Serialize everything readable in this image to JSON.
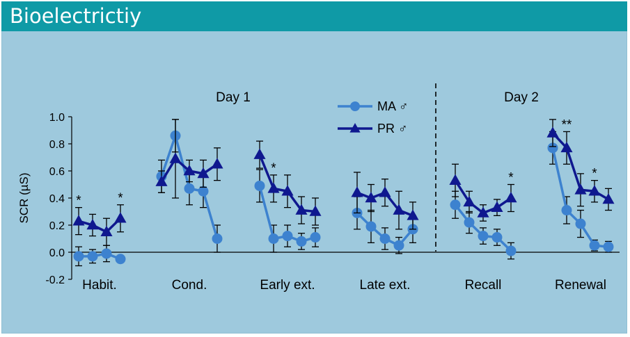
{
  "header": {
    "title": "Bioelectrictiy"
  },
  "colors": {
    "background": "#9ec9dd",
    "title_bar": "#0f9aa6",
    "ma": "#3d82cf",
    "pr": "#0f188f"
  },
  "chart_data": {
    "type": "line",
    "title": "",
    "xlabel": "",
    "ylabel": "SCR (µS)",
    "ylim": [
      -0.2,
      1.0
    ],
    "yticks": [
      "-0.2",
      "0.0",
      "0.2",
      "0.4",
      "0.6",
      "0.8",
      "1.0"
    ],
    "day_labels": [
      "Day 1",
      "Day 2"
    ],
    "phases": [
      {
        "label": "Habit.",
        "day": 1,
        "ma": {
          "values": [
            -0.03,
            -0.03,
            -0.01,
            -0.05
          ],
          "errors": [
            0.07,
            0.05,
            0.06,
            0.02
          ]
        },
        "pr": {
          "values": [
            0.23,
            0.2,
            0.15,
            0.25
          ],
          "errors": [
            0.1,
            0.08,
            0.1,
            0.1
          ]
        },
        "stars": [
          "*",
          "",
          "",
          "*"
        ]
      },
      {
        "label": "Cond.",
        "day": 1,
        "ma": {
          "values": [
            0.56,
            0.86,
            0.47,
            0.45,
            0.1
          ],
          "errors": [
            0.12,
            0.12,
            0.12,
            0.12,
            0.1
          ]
        },
        "pr": {
          "values": [
            0.52,
            0.69,
            0.6,
            0.58,
            0.65
          ],
          "errors": [
            0.08,
            0.29,
            0.08,
            0.1,
            0.12
          ]
        },
        "stars": [
          "",
          "",
          "",
          "",
          ""
        ]
      },
      {
        "label": "Early ext.",
        "day": 1,
        "ma": {
          "values": [
            0.49,
            0.1,
            0.12,
            0.08,
            0.11
          ],
          "errors": [
            0.12,
            0.1,
            0.08,
            0.06,
            0.07
          ]
        },
        "pr": {
          "values": [
            0.72,
            0.47,
            0.45,
            0.31,
            0.3
          ],
          "errors": [
            0.1,
            0.1,
            0.12,
            0.1,
            0.1
          ]
        },
        "stars": [
          "",
          "*",
          "",
          "",
          ""
        ]
      },
      {
        "label": "Late ext.",
        "day": 1,
        "ma": {
          "values": [
            0.29,
            0.19,
            0.1,
            0.05,
            0.17
          ],
          "errors": [
            0.12,
            0.12,
            0.08,
            0.06,
            0.1
          ]
        },
        "pr": {
          "values": [
            0.44,
            0.4,
            0.44,
            0.31,
            0.27
          ],
          "errors": [
            0.15,
            0.1,
            0.1,
            0.14,
            0.1
          ]
        },
        "stars": [
          "",
          "",
          "",
          "",
          ""
        ]
      },
      {
        "label": "Recall",
        "day": 2,
        "ma": {
          "values": [
            0.35,
            0.22,
            0.12,
            0.11,
            0.01
          ],
          "errors": [
            0.1,
            0.08,
            0.06,
            0.06,
            0.06
          ]
        },
        "pr": {
          "values": [
            0.53,
            0.37,
            0.29,
            0.33,
            0.4
          ],
          "errors": [
            0.12,
            0.08,
            0.06,
            0.06,
            0.1
          ]
        },
        "stars": [
          "",
          "",
          "",
          "",
          "*"
        ]
      },
      {
        "label": "Renewal",
        "day": 2,
        "ma": {
          "values": [
            0.77,
            0.31,
            0.21,
            0.05,
            0.04
          ],
          "errors": [
            0.12,
            0.1,
            0.1,
            0.04,
            0.04
          ]
        },
        "pr": {
          "values": [
            0.88,
            0.77,
            0.46,
            0.45,
            0.39
          ],
          "errors": [
            0.1,
            0.12,
            0.12,
            0.08,
            0.08
          ]
        },
        "stars": [
          "",
          "**",
          "",
          "*",
          ""
        ]
      }
    ],
    "series": [
      {
        "name": "MA ♂",
        "key": "ma",
        "marker": "circle",
        "color": "#3d82cf"
      },
      {
        "name": "PR ♂",
        "key": "pr",
        "marker": "triangle",
        "color": "#0f188f"
      }
    ],
    "legend_position": "top-center",
    "zero_line": true,
    "day_separator_after": "Late ext."
  }
}
